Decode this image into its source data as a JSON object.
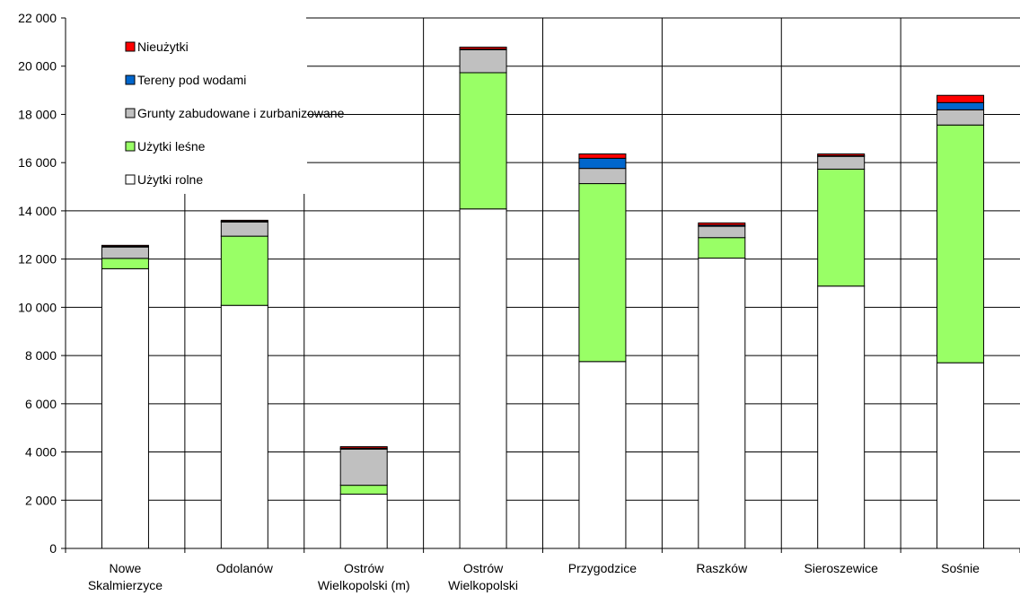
{
  "chart_data": {
    "type": "bar",
    "stacked": true,
    "categories": [
      [
        "Nowe",
        "Skalmierzyce"
      ],
      [
        "Odolanów"
      ],
      [
        "Ostrów",
        "Wielkopolski (m)"
      ],
      [
        "Ostrów",
        "Wielkopolski"
      ],
      [
        "Przygodzice"
      ],
      [
        "Raszków"
      ],
      [
        "Sieroszewice"
      ],
      [
        "Sośnie"
      ]
    ],
    "series": [
      {
        "name": "Użytki rolne",
        "color": "#ffffff",
        "values": [
          11600,
          10080,
          2250,
          14080,
          7750,
          12040,
          10880,
          7700
        ]
      },
      {
        "name": "Użytki leśne",
        "color": "#99ff66",
        "values": [
          430,
          2870,
          370,
          5650,
          7380,
          850,
          4850,
          9860
        ]
      },
      {
        "name": "Grunty zabudowane i zurbanizowane",
        "color": "#c0c0c0",
        "values": [
          470,
          590,
          1500,
          950,
          630,
          470,
          530,
          630
        ]
      },
      {
        "name": "Tereny pod wodami",
        "color": "#0066cc",
        "values": [
          30,
          30,
          40,
          30,
          420,
          50,
          30,
          300
        ]
      },
      {
        "name": "Nieużytki",
        "color": "#ff0000",
        "values": [
          40,
          40,
          60,
          80,
          180,
          90,
          70,
          300
        ]
      }
    ],
    "legend_order": [
      4,
      3,
      2,
      1,
      0
    ],
    "legend_position": "top-left",
    "ylim": [
      0,
      22000
    ],
    "ytick_step": 2000,
    "ytick_labels": [
      "0",
      "2 000",
      "4 000",
      "6 000",
      "8 000",
      "10 000",
      "12 000",
      "14 000",
      "16 000",
      "18 000",
      "20 000",
      "22 000"
    ],
    "grid": true,
    "title": "",
    "xlabel": "",
    "ylabel": ""
  }
}
